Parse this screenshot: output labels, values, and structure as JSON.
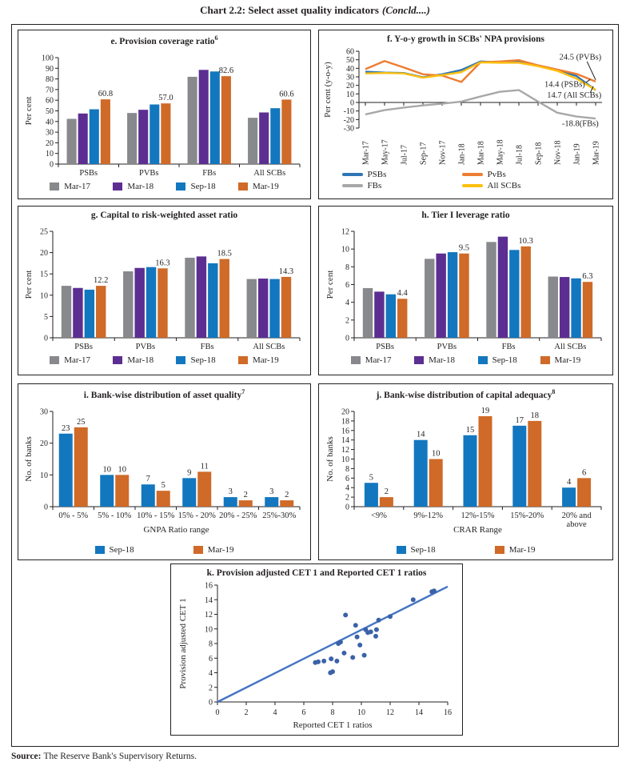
{
  "page": {
    "title_main": "Chart 2.2: Select asset quality indicators",
    "title_suffix": "(Concld....)",
    "source_label": "Source:",
    "source_text": "The Reserve Bank's Supervisory Returns."
  },
  "colors": {
    "text": "#231f20",
    "bar_gray": "#88898c",
    "bar_purple": "#5c2e91",
    "bar_blue": "#1277be",
    "bar_orange": "#cf6a28",
    "line_blue": "#2e75b6",
    "line_orange": "#ed7d31",
    "line_gray": "#a8a8a8",
    "line_yellow": "#fdc010",
    "scatter_point": "#3a62a8",
    "scatter_line": "#4374c4"
  },
  "chart_data": [
    {
      "id": "e",
      "type": "bar",
      "title": "e. Provision coverage ratio",
      "title_sup": "6",
      "ylabel": "Per cent",
      "ylim": [
        0,
        100
      ],
      "ytick": 10,
      "categories": [
        "PSBs",
        "PVBs",
        "FBs",
        "All SCBs"
      ],
      "series": [
        {
          "name": "Mar-17",
          "color": "#88898c",
          "values": [
            42.5,
            48,
            82,
            43.5
          ]
        },
        {
          "name": "Mar-18",
          "color": "#5c2e91",
          "values": [
            47.5,
            51,
            88.5,
            48.5
          ]
        },
        {
          "name": "Sep-18",
          "color": "#1277be",
          "values": [
            51.5,
            56,
            87,
            52.5
          ]
        },
        {
          "name": "Mar-19",
          "color": "#cf6a28",
          "values": [
            60.8,
            57.0,
            82.6,
            60.6
          ],
          "labels": [
            "60.8",
            "57.0",
            "82.6",
            "60.6"
          ]
        }
      ]
    },
    {
      "id": "f",
      "type": "line",
      "title": "f. Y-o-y growth in SCBs' NPA provisions",
      "ylabel": "Per cent (y-o-y)",
      "ylim": [
        -30,
        60
      ],
      "ytick": 10,
      "x": [
        "Mar-17",
        "May-17",
        "Jul-17",
        "Sep-17",
        "Nov-17",
        "Jan-18",
        "Mar-18",
        "May-18",
        "Jul-18",
        "Sep-18",
        "Nov-18",
        "Jan-19",
        "Mar-19"
      ],
      "series": [
        {
          "name": "PSBs",
          "color": "#2e75b6",
          "values": [
            36,
            35,
            34.5,
            29.5,
            33,
            38,
            48,
            47,
            47.5,
            43,
            38,
            31,
            14.4
          ]
        },
        {
          "name": "PvBs",
          "color": "#ed7d31",
          "values": [
            39,
            48.5,
            41,
            33,
            31.5,
            24,
            47,
            48,
            49.5,
            43.5,
            38.5,
            33.5,
            24.5
          ]
        },
        {
          "name": "FBs",
          "color": "#a8a8a8",
          "values": [
            -14,
            -9,
            -6,
            -3.5,
            -1.5,
            1,
            7,
            12.5,
            14.5,
            1,
            -12,
            -16.5,
            -18.8
          ]
        },
        {
          "name": "All SCBs",
          "color": "#fdc010",
          "values": [
            34,
            34.5,
            34,
            29,
            32,
            35.5,
            47,
            46.5,
            46.5,
            42.5,
            37,
            28,
            14.7
          ]
        }
      ],
      "annotations": [
        {
          "text": "24.5 (PVBs)",
          "x": 12.3,
          "y": 53,
          "anchor": "end",
          "leader": [
            [
              11.55,
              48
            ],
            [
              12.0,
              26.5
            ]
          ]
        },
        {
          "text": "14.4 (PSBs)",
          "x": 11.45,
          "y": 21,
          "anchor": "end",
          "leader": [
            [
              11.5,
              23.5
            ],
            [
              11.72,
              27
            ]
          ]
        },
        {
          "text": "14.7 (All SCBs)",
          "x": 12.3,
          "y": 8.5,
          "anchor": "end",
          "leader": [
            [
              11.72,
              11.5
            ],
            [
              11.88,
              19
            ]
          ]
        },
        {
          "text": "-18.8(FBs)",
          "x": 11.2,
          "y": -25,
          "anchor": "middle"
        }
      ]
    },
    {
      "id": "g",
      "type": "bar",
      "title": "g. Capital to risk-weighted asset ratio",
      "ylabel": "Per cent",
      "ylim": [
        0,
        25
      ],
      "ytick": 5,
      "categories": [
        "PSBs",
        "PVBs",
        "FBs",
        "All SCBs"
      ],
      "series": [
        {
          "name": "Mar-17",
          "color": "#88898c",
          "values": [
            12.2,
            15.6,
            18.8,
            13.8
          ]
        },
        {
          "name": "Mar-18",
          "color": "#5c2e91",
          "values": [
            11.7,
            16.4,
            19.1,
            13.9
          ]
        },
        {
          "name": "Sep-18",
          "color": "#1277be",
          "values": [
            11.3,
            16.6,
            17.5,
            13.8
          ]
        },
        {
          "name": "Mar-19",
          "color": "#cf6a28",
          "values": [
            12.2,
            16.3,
            18.5,
            14.3
          ],
          "labels": [
            "12.2",
            "16.3",
            "18.5",
            "14.3"
          ]
        }
      ]
    },
    {
      "id": "h",
      "type": "bar",
      "title": "h. Tier I leverage ratio",
      "ylabel": "Per cent",
      "ylim": [
        0,
        12
      ],
      "ytick": 2,
      "categories": [
        "PSBs",
        "PVBs",
        "FBs",
        "All SCBs"
      ],
      "series": [
        {
          "name": "Mar-17",
          "color": "#88898c",
          "values": [
            5.6,
            8.9,
            10.8,
            6.9
          ]
        },
        {
          "name": "Mar-18",
          "color": "#5c2e91",
          "values": [
            5.2,
            9.5,
            11.4,
            6.85
          ]
        },
        {
          "name": "Sep-18",
          "color": "#1277be",
          "values": [
            4.9,
            9.65,
            9.9,
            6.7
          ]
        },
        {
          "name": "Mar-19",
          "color": "#cf6a28",
          "values": [
            4.4,
            9.5,
            10.3,
            6.3
          ],
          "labels": [
            "4.4",
            "9.5",
            "10.3",
            "6.3"
          ]
        }
      ]
    },
    {
      "id": "i",
      "type": "bar",
      "title": "i. Bank-wise distribution of asset quality",
      "title_sup": "7",
      "ylabel": "No. of banks",
      "xlabel": "GNPA Ratio range",
      "ylim": [
        0,
        30
      ],
      "ytick": 10,
      "categories": [
        "0% - 5%",
        "5% - 10%",
        "10% - 15%",
        "15% - 20%",
        "20% - 25%",
        "25%-30%"
      ],
      "series": [
        {
          "name": "Sep-18",
          "color": "#1277be",
          "values": [
            23,
            10,
            7,
            9,
            3,
            3
          ],
          "labels": [
            "23",
            "10",
            "7",
            "9",
            "3",
            "3"
          ]
        },
        {
          "name": "Mar-19",
          "color": "#cf6a28",
          "values": [
            25,
            10,
            5,
            11,
            2,
            2
          ],
          "labels": [
            "25",
            "10",
            "5",
            "11",
            "2",
            "2"
          ]
        }
      ]
    },
    {
      "id": "j",
      "type": "bar",
      "title": "j. Bank-wise distribution of capital adequacy",
      "title_sup": "8",
      "ylabel": "No. of banks",
      "xlabel": "CRAR Range",
      "ylim": [
        0,
        20
      ],
      "ytick": 2,
      "categories": [
        "<9%",
        "9%-12%",
        "12%-15%",
        "15%-20%",
        [
          "20% and",
          "above"
        ]
      ],
      "series": [
        {
          "name": "Sep-18",
          "color": "#1277be",
          "values": [
            5,
            14,
            15,
            17,
            4
          ],
          "labels": [
            "5",
            "14",
            "15",
            "17",
            "4"
          ]
        },
        {
          "name": "Mar-19",
          "color": "#cf6a28",
          "values": [
            2,
            10,
            19,
            18,
            6
          ],
          "labels": [
            "2",
            "10",
            "19",
            "18",
            "6"
          ]
        }
      ]
    },
    {
      "id": "k",
      "type": "scatter",
      "title": "k. Provision adjusted CET 1 and Reported CET 1 ratios",
      "xlabel": "Reported CET 1 ratios",
      "ylabel": "Provision adjusted CET 1",
      "xlim": [
        0,
        16
      ],
      "ylim": [
        0,
        16
      ],
      "xtick": 2,
      "ytick": 2,
      "point_color": "#3a62a8",
      "line_color": "#4374c4",
      "trendline": [
        [
          0,
          0
        ],
        [
          16,
          15.8
        ]
      ],
      "points": [
        [
          6.8,
          5.4
        ],
        [
          7.0,
          5.5
        ],
        [
          7.4,
          5.6
        ],
        [
          7.85,
          4.0
        ],
        [
          8.0,
          4.15
        ],
        [
          7.9,
          5.9
        ],
        [
          8.3,
          5.6
        ],
        [
          8.4,
          8.0
        ],
        [
          8.55,
          8.2
        ],
        [
          8.8,
          6.7
        ],
        [
          8.9,
          11.9
        ],
        [
          9.4,
          6.1
        ],
        [
          9.6,
          10.5
        ],
        [
          9.7,
          8.9
        ],
        [
          9.9,
          7.8
        ],
        [
          10.2,
          6.4
        ],
        [
          10.3,
          9.9
        ],
        [
          10.45,
          9.5
        ],
        [
          10.65,
          9.6
        ],
        [
          11.0,
          9.0
        ],
        [
          11.05,
          9.9
        ],
        [
          11.2,
          11.2
        ],
        [
          12.0,
          11.7
        ],
        [
          13.6,
          14.0
        ],
        [
          14.9,
          15.1
        ],
        [
          15.05,
          15.2
        ]
      ]
    }
  ]
}
